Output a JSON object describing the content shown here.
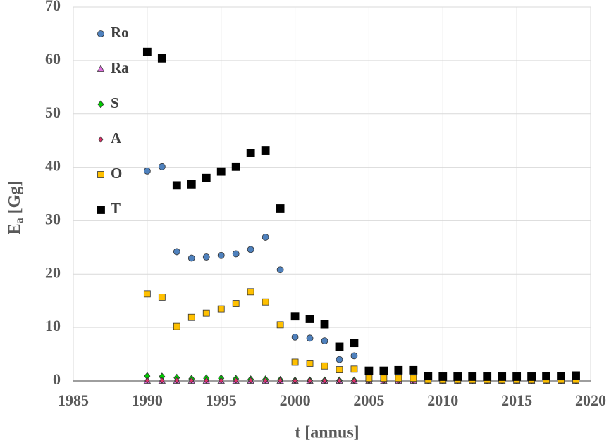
{
  "chart_data": {
    "type": "scatter",
    "xlabel": "t [annus]",
    "ylabel_parts": [
      "E",
      "a",
      " [Gg]"
    ],
    "xlim": [
      1985,
      2020
    ],
    "xticks": [
      1985,
      1990,
      1995,
      2000,
      2005,
      2010,
      2015,
      2020
    ],
    "ylim": [
      0,
      70
    ],
    "yticks": [
      0,
      10,
      20,
      30,
      40,
      50,
      60,
      70
    ],
    "grid": true,
    "legend": "upper left",
    "x": [
      1990,
      1991,
      1992,
      1993,
      1994,
      1995,
      1996,
      1997,
      1998,
      1999,
      2000,
      2001,
      2002,
      2003,
      2004,
      2005,
      2006,
      2007,
      2008,
      2009,
      2010,
      2011,
      2012,
      2013,
      2014,
      2015,
      2016,
      2017,
      2018,
      2019
    ],
    "series": [
      {
        "name": "Ro",
        "color": "#4f81bd",
        "marker": "circle",
        "values": [
          39.3,
          40.1,
          24.2,
          23.0,
          23.2,
          23.5,
          23.8,
          24.6,
          26.9,
          20.8,
          8.2,
          8.0,
          7.5,
          4.0,
          4.7,
          1.2,
          1.2,
          1.3,
          1.3,
          0.4,
          0.4,
          0.4,
          0.4,
          0.4,
          0.4,
          0.4,
          0.4,
          0.4,
          0.4,
          0.4
        ]
      },
      {
        "name": "Ra",
        "color": "#e070e0",
        "marker": "triangle",
        "values": [
          0,
          0,
          0,
          0,
          0,
          0,
          0,
          0,
          0,
          0,
          0,
          0,
          0,
          0,
          0,
          0,
          0,
          0,
          0,
          0,
          0,
          0,
          0,
          0,
          0,
          0,
          0,
          0,
          0,
          0
        ]
      },
      {
        "name": "S",
        "color": "#00cc00",
        "marker": "diamond",
        "values": [
          0.9,
          0.8,
          0.6,
          0.4,
          0.5,
          0.5,
          0.4,
          0.3,
          0.3,
          0.2,
          0.1,
          0.1,
          0.1,
          0.1,
          0.1,
          0.1,
          0.1,
          0.1,
          0.1,
          0.1,
          0.1,
          0.1,
          0.1,
          0.1,
          0.1,
          0.1,
          0.1,
          0.1,
          0.1,
          0.1
        ]
      },
      {
        "name": "A",
        "color": "#e0306a",
        "marker": "diamond-small",
        "values": [
          0.1,
          0.1,
          0.1,
          0.1,
          0.1,
          0.1,
          0.1,
          0.1,
          0.1,
          0.1,
          0.05,
          0.05,
          0.05,
          0.05,
          0.05,
          0.05,
          0.05,
          0.05,
          0.05,
          0.05,
          0.05,
          0.05,
          0.05,
          0.05,
          0.05,
          0.05,
          0.05,
          0.05,
          0.05,
          0.05
        ]
      },
      {
        "name": "O",
        "color": "#ffc000",
        "marker": "square",
        "values": [
          16.3,
          15.7,
          10.2,
          11.9,
          12.7,
          13.5,
          14.5,
          16.7,
          14.8,
          10.5,
          3.5,
          3.3,
          2.8,
          2.1,
          2.2,
          0.5,
          0.5,
          0.5,
          0.5,
          0.2,
          0.2,
          0.2,
          0.2,
          0.2,
          0.2,
          0.2,
          0.2,
          0.2,
          0.2,
          0.2
        ]
      },
      {
        "name": "T",
        "color": "#000000",
        "marker": "square-big",
        "values": [
          61.6,
          60.4,
          36.6,
          36.8,
          38.0,
          39.2,
          40.1,
          42.7,
          43.1,
          32.3,
          12.1,
          11.6,
          10.6,
          6.4,
          7.1,
          1.9,
          1.9,
          2.0,
          2.0,
          0.9,
          0.8,
          0.8,
          0.8,
          0.8,
          0.8,
          0.8,
          0.8,
          0.9,
          0.9,
          1.0
        ]
      }
    ]
  }
}
